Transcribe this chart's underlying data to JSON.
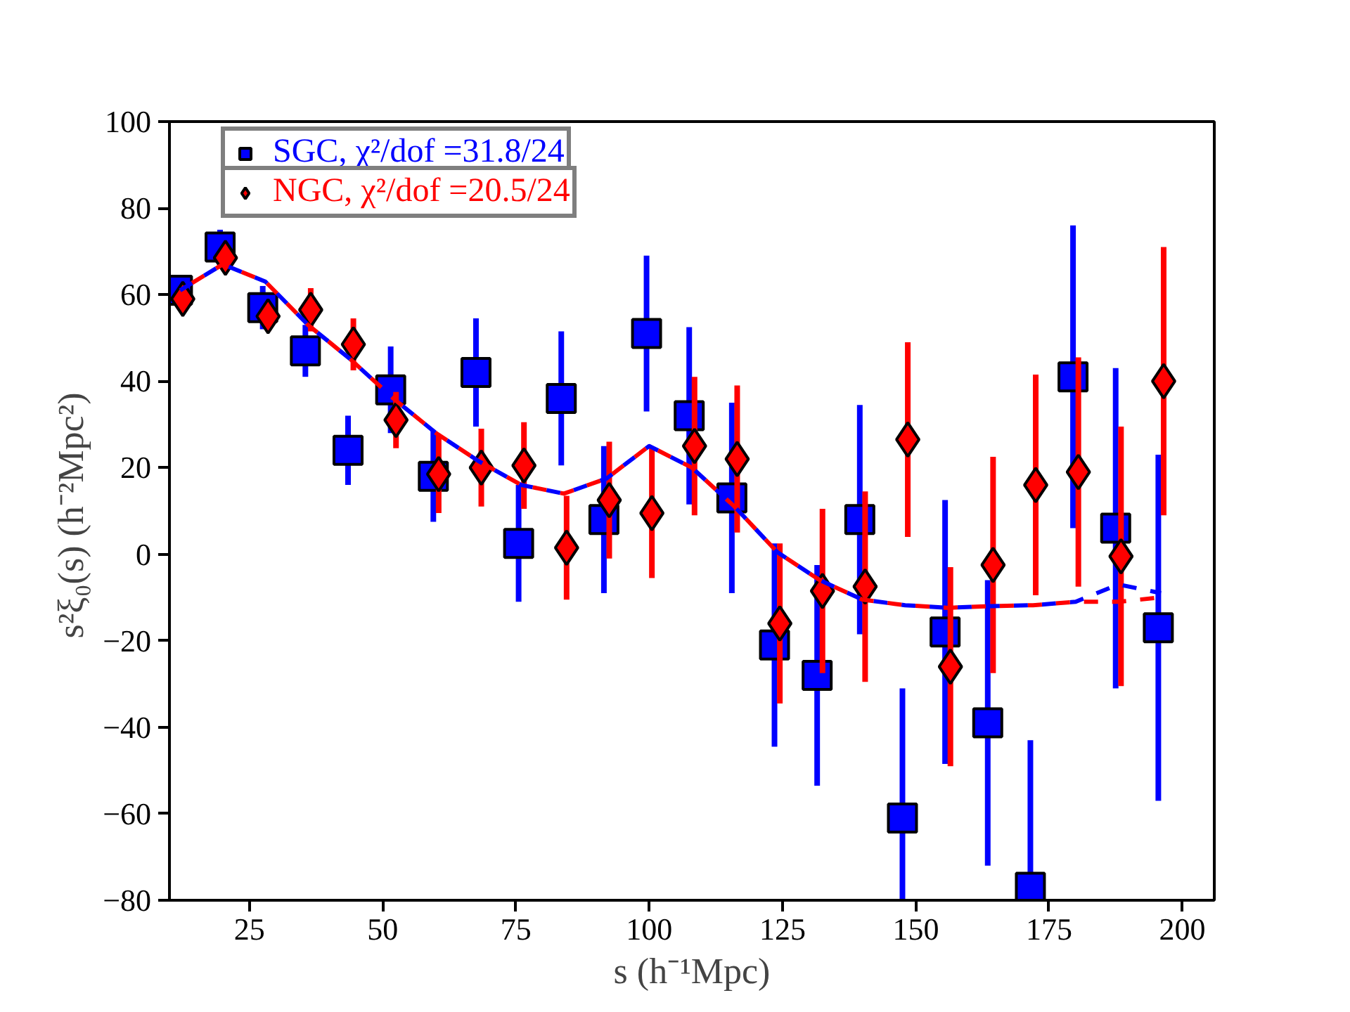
{
  "chart_data": {
    "type": "scatter",
    "xlabel": "s (h⁻¹Mpc)",
    "ylabel": "s²ξ₀(s)  (h⁻²Mpc²)",
    "xlim": [
      10,
      206
    ],
    "xticks": [
      25,
      50,
      75,
      100,
      125,
      150,
      175,
      200
    ],
    "ylim": [
      -80,
      100
    ],
    "yticks": [
      -80,
      -60,
      -40,
      -20,
      0,
      20,
      40,
      60,
      80,
      100
    ],
    "grid": false,
    "legend": "top left",
    "series": [
      {
        "type": "line",
        "color": "#0000ff",
        "line_style": "dashed",
        "marker": "none",
        "x": [
          12,
          20,
          28,
          36,
          44,
          52,
          60,
          68,
          76,
          84,
          92,
          100,
          108,
          116,
          124,
          132,
          140,
          148,
          156,
          164,
          172,
          180,
          188,
          196
        ],
        "values": [
          61,
          67,
          63,
          53,
          45,
          36,
          28,
          21.5,
          16,
          14,
          17.5,
          25,
          20,
          11,
          0.5,
          -6,
          -10.5,
          -11.8,
          -12.4,
          -12,
          -11.8,
          -11,
          -7,
          -9
        ]
      },
      {
        "type": "line",
        "color": "#ff0000",
        "line_style": "dashed",
        "marker": "none",
        "x": [
          12,
          20,
          28,
          36,
          44,
          52,
          60,
          68,
          76,
          84,
          92,
          100,
          108,
          116,
          124,
          132,
          140,
          148,
          156,
          164,
          172,
          180,
          188,
          196
        ],
        "values": [
          61,
          67,
          63,
          53,
          45,
          36,
          28,
          21.5,
          16,
          14,
          17.5,
          25,
          20,
          11,
          0.5,
          -6,
          -10.5,
          -11.8,
          -12.4,
          -12,
          -11.8,
          -11,
          -11,
          -10
        ]
      },
      {
        "name": "SGC, χ²/dof =31.8/24",
        "color": "#0000ff",
        "marker": "square",
        "x": [
          11.5,
          19.5,
          27.5,
          35.5,
          43.5,
          51.5,
          59.5,
          67.5,
          75.5,
          83.5,
          91.5,
          99.5,
          107.5,
          115.5,
          123.5,
          131.5,
          139.5,
          147.5,
          155.5,
          163.5,
          171.5,
          179.5,
          187.5,
          195.5
        ],
        "values": [
          61,
          71,
          57,
          47,
          24,
          38,
          18,
          42,
          2.5,
          36,
          8,
          51,
          32,
          13,
          -21,
          -28,
          8,
          -61,
          -18,
          -39,
          -77,
          41,
          6,
          -17
        ],
        "errors": [
          3,
          4,
          5,
          6,
          8,
          10,
          10.5,
          12.5,
          13.5,
          15.5,
          17,
          18,
          20.5,
          22,
          23.5,
          25.5,
          26.5,
          30,
          30.5,
          33,
          34,
          35,
          37,
          40
        ]
      },
      {
        "name": "NGC, χ²/dof =20.5/24",
        "color": "#ff0000",
        "marker": "diamond",
        "x": [
          12.5,
          20.5,
          28.5,
          36.5,
          44.5,
          52.5,
          60.5,
          68.5,
          76.5,
          84.5,
          92.5,
          100.5,
          108.5,
          116.5,
          124.5,
          132.5,
          140.5,
          148.5,
          156.5,
          164.5,
          172.5,
          180.5,
          188.5,
          196.5
        ],
        "values": [
          59,
          68.5,
          55,
          56.5,
          48.5,
          31,
          18.5,
          20,
          20.5,
          1.5,
          12.5,
          9.5,
          25,
          22,
          -16,
          -8.5,
          -7.5,
          26.5,
          -26,
          -2.5,
          16,
          19,
          -0.5,
          40
        ],
        "errors": [
          3,
          3,
          3.5,
          5,
          6,
          6.5,
          9,
          9,
          10,
          12,
          13.5,
          15,
          16,
          17,
          18.5,
          19,
          22,
          22.5,
          23,
          25,
          25.5,
          26.5,
          30,
          31
        ]
      }
    ]
  }
}
